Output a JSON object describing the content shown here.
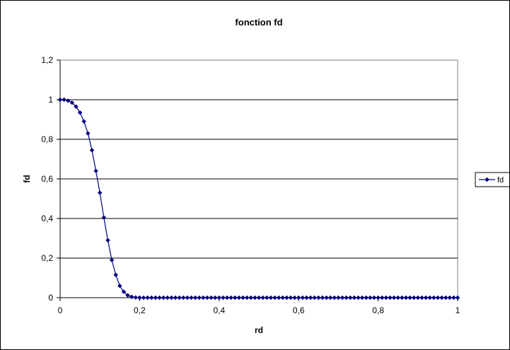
{
  "chart_data": {
    "type": "line",
    "title": "fonction fd",
    "xlabel": "rd",
    "ylabel": "fd",
    "xlim": [
      0,
      1
    ],
    "ylim": [
      0,
      1.2
    ],
    "x_ticks": [
      "0",
      "0,2",
      "0,4",
      "0,6",
      "0,8",
      "1"
    ],
    "y_ticks": [
      "0",
      "0,2",
      "0,4",
      "0,6",
      "0,8",
      "1",
      "1,2"
    ],
    "grid": "horizontal",
    "legend": "right",
    "series": [
      {
        "name": "fd",
        "color": "#000080",
        "x": [
          0,
          0.01,
          0.02,
          0.03,
          0.04,
          0.05,
          0.06,
          0.07,
          0.08,
          0.09,
          0.1,
          0.11,
          0.12,
          0.13,
          0.14,
          0.15,
          0.16,
          0.17,
          0.18,
          0.19,
          0.2,
          0.21,
          0.22,
          0.23,
          0.24,
          0.25,
          0.26,
          0.27,
          0.28,
          0.29,
          0.3,
          0.31,
          0.32,
          0.33,
          0.34,
          0.35,
          0.36,
          0.37,
          0.38,
          0.39,
          0.4,
          0.41,
          0.42,
          0.43,
          0.44,
          0.45,
          0.46,
          0.47,
          0.48,
          0.49,
          0.5,
          0.51,
          0.52,
          0.53,
          0.54,
          0.55,
          0.56,
          0.57,
          0.58,
          0.59,
          0.6,
          0.61,
          0.62,
          0.63,
          0.64,
          0.65,
          0.66,
          0.67,
          0.68,
          0.69,
          0.7,
          0.71,
          0.72,
          0.73,
          0.74,
          0.75,
          0.76,
          0.77,
          0.78,
          0.79,
          0.8,
          0.81,
          0.82,
          0.83,
          0.84,
          0.85,
          0.86,
          0.87,
          0.88,
          0.89,
          0.9,
          0.91,
          0.92,
          0.93,
          0.94,
          0.95,
          0.96,
          0.97,
          0.98,
          0.99,
          1
        ],
        "values": [
          1.0,
          1.0,
          0.995,
          0.985,
          0.965,
          0.935,
          0.89,
          0.83,
          0.745,
          0.64,
          0.53,
          0.405,
          0.29,
          0.19,
          0.115,
          0.06,
          0.03,
          0.012,
          0.004,
          0.001,
          0.0,
          0,
          0,
          0,
          0,
          0,
          0,
          0,
          0,
          0,
          0,
          0,
          0,
          0,
          0,
          0,
          0,
          0,
          0,
          0,
          0,
          0,
          0,
          0,
          0,
          0,
          0,
          0,
          0,
          0,
          0,
          0,
          0,
          0,
          0,
          0,
          0,
          0,
          0,
          0,
          0,
          0,
          0,
          0,
          0,
          0,
          0,
          0,
          0,
          0,
          0,
          0,
          0,
          0,
          0,
          0,
          0,
          0,
          0,
          0,
          0,
          0,
          0,
          0,
          0,
          0,
          0,
          0,
          0,
          0,
          0,
          0,
          0,
          0,
          0,
          0,
          0,
          0,
          0,
          0,
          0
        ]
      }
    ]
  }
}
